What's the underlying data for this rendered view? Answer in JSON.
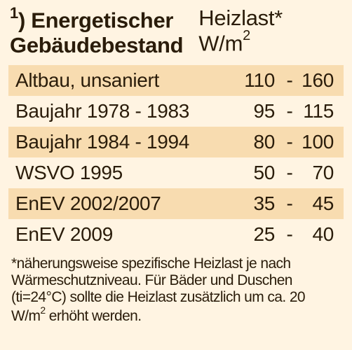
{
  "colors": {
    "card_background": "#fff4e2",
    "row_stripe": "#f8dcb0",
    "text": "#2a1c0a"
  },
  "header": {
    "footnote_marker": "1",
    "title_line1": "Energetischer",
    "title_line2": "Gebäudebestand",
    "heizlast_label": "Heizlast*",
    "unit_prefix": "W/m",
    "unit_exponent": "2"
  },
  "table": {
    "rows": [
      {
        "label": "Altbau, unsaniert",
        "min": "110",
        "dash": "-",
        "max": "160"
      },
      {
        "label": "Baujahr 1978 - 1983",
        "min": "95",
        "dash": "-",
        "max": "115"
      },
      {
        "label": "Baujahr 1984 - 1994",
        "min": "80",
        "dash": "-",
        "max": "100"
      },
      {
        "label": "WSVO 1995",
        "min": "50",
        "dash": "-",
        "max": "70"
      },
      {
        "label": "EnEV 2002/2007",
        "min": "35",
        "dash": "-",
        "max": "45"
      },
      {
        "label": "EnEV 2009",
        "min": "25",
        "dash": "-",
        "max": "40"
      }
    ]
  },
  "footnote": {
    "part1": "*näherungsweise spezifische Heizlast je nach Wärme­schutzniveau. Für Bäder und Duschen (ti=24°C) sollte die Heizlast zusätzlich um ca. 20 W/m",
    "exp": "2",
    "part2": " erhöht werden."
  }
}
